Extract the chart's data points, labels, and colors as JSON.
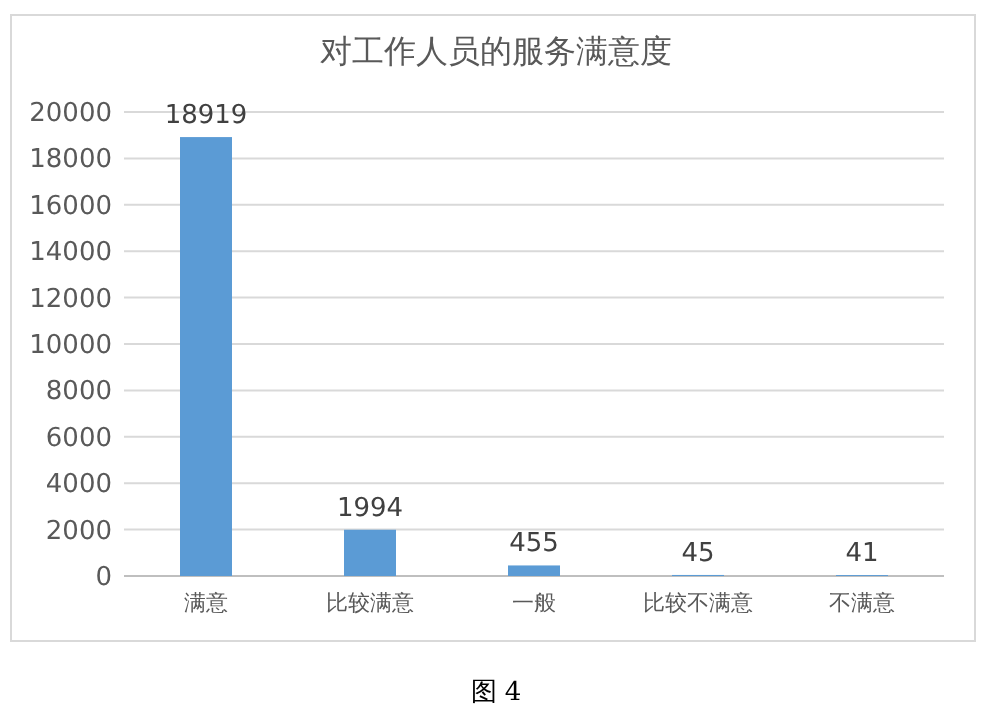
{
  "chart_data": {
    "type": "bar",
    "title": "对工作人员的服务满意度",
    "categories": [
      "满意",
      "比较满意",
      "一般",
      "比较不满意",
      "不满意"
    ],
    "values": [
      18919,
      1994,
      455,
      45,
      41
    ],
    "color": "#5b9bd5",
    "ylim": [
      0,
      20000
    ],
    "yticks": [
      0,
      2000,
      4000,
      6000,
      8000,
      10000,
      12000,
      14000,
      16000,
      18000,
      20000
    ],
    "grid": "y",
    "data_labels": true,
    "annotations": [
      "图 4"
    ]
  }
}
